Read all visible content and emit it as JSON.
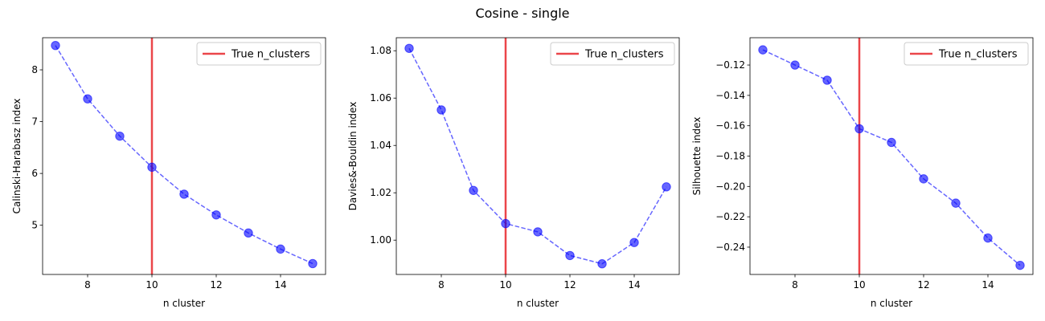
{
  "figure": {
    "title": "Cosine - single"
  },
  "colors": {
    "series": "#0000ff",
    "true_line": "#e8262a",
    "axes": "#000000",
    "legend_border": "#cccccc"
  },
  "chart_data": [
    {
      "type": "line",
      "title": "",
      "xlabel": "n cluster",
      "ylabel": "Calinski-Harabasz index",
      "xlim": [
        6.6,
        15.4
      ],
      "ylim": [
        4.05,
        8.62
      ],
      "xticks": [
        8,
        10,
        12,
        14
      ],
      "xtick_labels": [
        "8",
        "10",
        "12",
        "14"
      ],
      "yticks": [
        5,
        6,
        7,
        8
      ],
      "ytick_labels": [
        "5",
        "6",
        "7",
        "8"
      ],
      "grid": false,
      "legend": "top-right",
      "series": [
        {
          "x": [
            7,
            8,
            9,
            10,
            11,
            12,
            13,
            14,
            15
          ],
          "y": [
            8.47,
            7.44,
            6.72,
            6.12,
            5.6,
            5.2,
            4.85,
            4.54,
            4.26
          ],
          "style": "dashed line with circle markers"
        }
      ],
      "vline": {
        "name": "True n_clusters",
        "x": 10
      }
    },
    {
      "type": "line",
      "title": "",
      "xlabel": "n cluster",
      "ylabel": "Davies&-Bouldin index",
      "xlim": [
        6.6,
        15.4
      ],
      "ylim": [
        0.9855,
        1.0855
      ],
      "xticks": [
        8,
        10,
        12,
        14
      ],
      "xtick_labels": [
        "8",
        "10",
        "12",
        "14"
      ],
      "yticks": [
        1.0,
        1.02,
        1.04,
        1.06,
        1.08
      ],
      "ytick_labels": [
        "1.00",
        "1.02",
        "1.04",
        "1.06",
        "1.08"
      ],
      "grid": false,
      "legend": "top-right",
      "series": [
        {
          "x": [
            7,
            8,
            9,
            10,
            11,
            12,
            13,
            14,
            15
          ],
          "y": [
            1.081,
            1.055,
            1.021,
            1.007,
            1.0035,
            0.9935,
            0.99,
            0.999,
            1.0225
          ],
          "style": "dashed line with circle markers"
        }
      ],
      "vline": {
        "name": "True n_clusters",
        "x": 10
      }
    },
    {
      "type": "line",
      "title": "",
      "xlabel": "n cluster",
      "ylabel": "Silhouette index",
      "xlim": [
        6.6,
        15.4
      ],
      "ylim": [
        -0.258,
        -0.102
      ],
      "xticks": [
        8,
        10,
        12,
        14
      ],
      "xtick_labels": [
        "8",
        "10",
        "12",
        "14"
      ],
      "yticks": [
        -0.12,
        -0.14,
        -0.16,
        -0.18,
        -0.2,
        -0.22,
        -0.24
      ],
      "ytick_labels": [
        "−0.12",
        "−0.14",
        "−0.16",
        "−0.18",
        "−0.20",
        "−0.22",
        "−0.24"
      ],
      "grid": false,
      "legend": "top-right",
      "series": [
        {
          "x": [
            7,
            8,
            9,
            10,
            11,
            12,
            13,
            14,
            15
          ],
          "y": [
            -0.11,
            -0.12,
            -0.13,
            -0.162,
            -0.171,
            -0.195,
            -0.211,
            -0.234,
            -0.252
          ],
          "style": "dashed line with circle markers"
        }
      ],
      "vline": {
        "name": "True n_clusters",
        "x": 10
      }
    }
  ]
}
